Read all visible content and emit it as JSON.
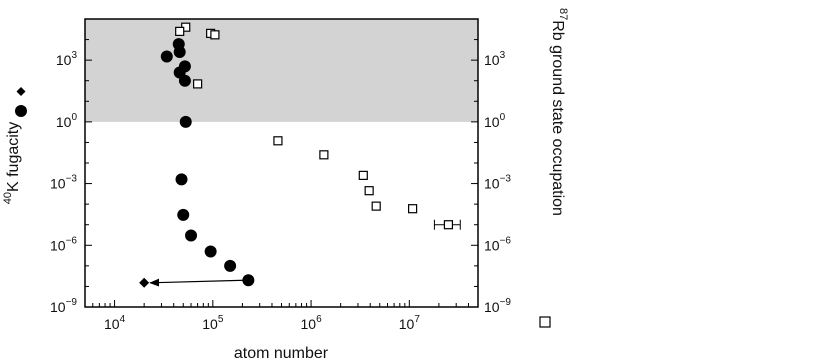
{
  "chart_data": {
    "type": "scatter",
    "title": "",
    "xlabel": "atom number",
    "ylabel_left_sup": "40",
    "ylabel_left": "K fugacity",
    "ylabel_right_sup": "87",
    "ylabel_right": "Rb ground state occupation",
    "x_scale": "log",
    "y_scale": "log",
    "xlim": [
      5000,
      50000000
    ],
    "ylim": [
      1e-09,
      100000
    ],
    "x_ticks": [
      {
        "value": 10000,
        "base": "10",
        "exp": "4"
      },
      {
        "value": 100000,
        "base": "10",
        "exp": "5"
      },
      {
        "value": 1000000,
        "base": "10",
        "exp": "6"
      },
      {
        "value": 10000000,
        "base": "10",
        "exp": "7"
      }
    ],
    "y_ticks": [
      {
        "value": 1e-09,
        "base": "10",
        "exp": "−9"
      },
      {
        "value": 1e-06,
        "base": "10",
        "exp": "−6"
      },
      {
        "value": 0.001,
        "base": "10",
        "exp": "−3"
      },
      {
        "value": 1,
        "base": "10",
        "exp": "0"
      },
      {
        "value": 1000,
        "base": "10",
        "exp": "3"
      }
    ],
    "shaded_region": {
      "y_from": 1,
      "y_to": 100000,
      "color": "#d3d3d3"
    },
    "series": [
      {
        "marker": "circle",
        "color": "#000000",
        "points": [
          {
            "x": 45000,
            "y": 6000
          },
          {
            "x": 46000,
            "y": 2500
          },
          {
            "x": 34000,
            "y": 1500
          },
          {
            "x": 52000,
            "y": 500
          },
          {
            "x": 46000,
            "y": 250
          },
          {
            "x": 52000,
            "y": 100
          },
          {
            "x": 53000,
            "y": 1
          },
          {
            "x": 48000,
            "y": 0.0016
          },
          {
            "x": 50000,
            "y": 3e-05
          },
          {
            "x": 60000,
            "y": 3e-06
          },
          {
            "x": 95000,
            "y": 5e-07
          },
          {
            "x": 150000,
            "y": 1e-07
          },
          {
            "x": 230000,
            "y": 2e-08
          }
        ]
      },
      {
        "marker": "diamond",
        "color": "#000000",
        "points": [
          {
            "x": 20000,
            "y": 1.5e-08
          }
        ]
      },
      {
        "marker": "square-open",
        "color": "#000000",
        "points": [
          {
            "x": 53000,
            "y": 40000
          },
          {
            "x": 46000,
            "y": 25000
          },
          {
            "x": 95000,
            "y": 20000
          },
          {
            "x": 105000,
            "y": 17000
          },
          {
            "x": 70000,
            "y": 70
          },
          {
            "x": 460000,
            "y": 0.12
          },
          {
            "x": 1350000,
            "y": 0.025
          },
          {
            "x": 3400000,
            "y": 0.0025
          },
          {
            "x": 3900000,
            "y": 0.00045
          },
          {
            "x": 4600000,
            "y": 8e-05
          },
          {
            "x": 10800000,
            "y": 6e-05
          },
          {
            "x": 25000000,
            "y": 1e-05,
            "x_err": [
              18000000,
              33000000
            ]
          }
        ]
      }
    ],
    "annotations": [
      {
        "type": "arrow",
        "from": {
          "x": 210000,
          "y": 2e-08
        },
        "to": {
          "x": 23000,
          "y": 1.5e-08
        }
      }
    ]
  }
}
